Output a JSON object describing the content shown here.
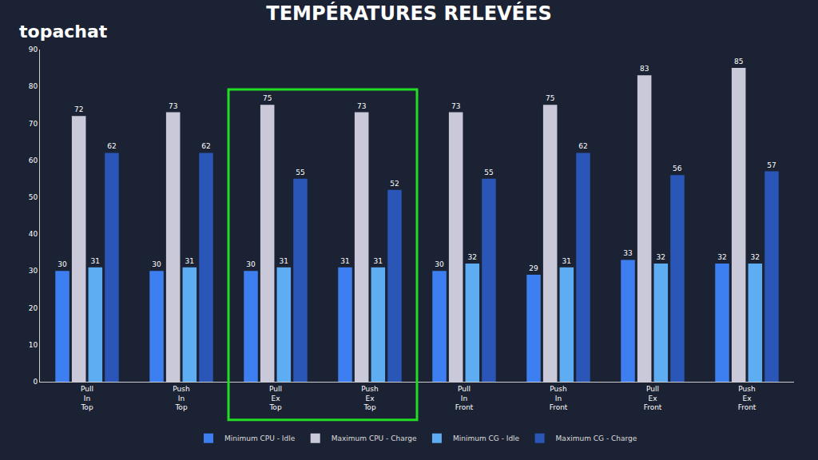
{
  "chart_data": {
    "type": "bar",
    "title": "TEMPÉRATURES RELEVÉES",
    "annotations": [
      {
        "text": "topachat"
      }
    ],
    "categories": [
      "Pull\nIn\nTop",
      "Push\nIn\nTop",
      "Pull\nEx\nTop",
      "Push\nEx\nTop",
      "Pull\nIn\nFront",
      "Push\nIn\nFront",
      "Pull\nEx\nFront",
      "Push\nEx\nFront"
    ],
    "series": [
      {
        "name": "Minimum CPU - Idle",
        "color": "#3d7ef0",
        "values": [
          30,
          30,
          30,
          31,
          30,
          29,
          33,
          32
        ]
      },
      {
        "name": "Maximum CPU - Charge",
        "color": "#c9c9d9",
        "values": [
          72,
          73,
          75,
          73,
          73,
          75,
          83,
          85
        ]
      },
      {
        "name": "Minimum CG - Idle",
        "color": "#5eacf2",
        "values": [
          31,
          31,
          31,
          31,
          32,
          31,
          32,
          32
        ]
      },
      {
        "name": "Maximum CG - Charge",
        "color": "#2a56b8",
        "values": [
          62,
          62,
          55,
          52,
          55,
          62,
          56,
          57
        ]
      }
    ],
    "highlight": {
      "categories": [
        "Pull\nEx\nTop",
        "Push\nEx\nTop"
      ],
      "color": "#22dd22"
    },
    "ylim": [
      0,
      90
    ],
    "yticks": [
      0,
      10,
      20,
      30,
      40,
      50,
      60,
      70,
      80,
      90
    ],
    "grid": false,
    "legend": "bottom",
    "data_labels": true
  }
}
